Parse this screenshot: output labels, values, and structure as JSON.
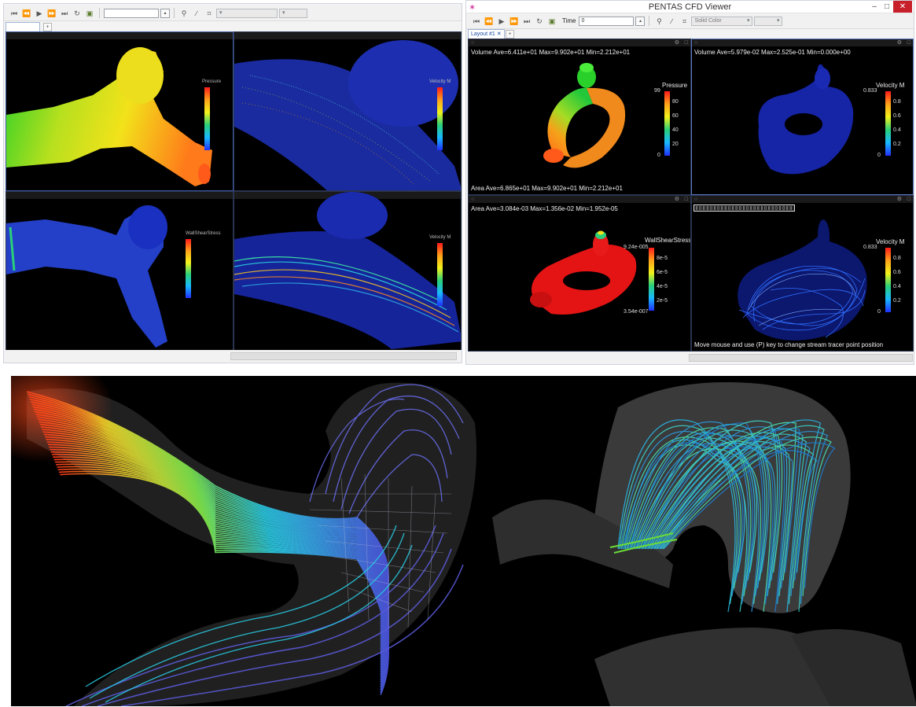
{
  "right_window": {
    "title": "PENTAS CFD Viewer",
    "toolbar": {
      "time_label": "Time",
      "time_value": "0",
      "render_mode": "Solid Color"
    },
    "tab_label": "Layout #1",
    "panes": [
      {
        "info": "Volume Ave=6.411e+01 Max=9.902e+01 Min=2.212e+01",
        "footer": "Area Ave=6.865e+01 Max=9.902e+01 Min=2.212e+01",
        "colorbar": {
          "title": "Pressure",
          "max": "99",
          "ticks": [
            "80",
            "60",
            "40",
            "20"
          ],
          "min": "0"
        }
      },
      {
        "info": "Volume Ave=5.979e-02 Max=2.525e-01 Min=0.000e+00",
        "colorbar": {
          "title": "Velocity M",
          "max": "0.833",
          "ticks": [
            "0.8",
            "0.6",
            "0.4",
            "0.2"
          ],
          "min": "0"
        }
      },
      {
        "info": "Area Ave=3.084e-03 Max=1.356e-02 Min=1.952e-05",
        "colorbar": {
          "title": "WallShearStress",
          "max": "9.24e-005",
          "ticks": [
            "8e-5",
            "6e-5",
            "4e-5",
            "2e-5"
          ],
          "min": "3.54e-007"
        }
      },
      {
        "footer": "Move mouse and use (P) key to change stream tracer point position",
        "colorbar": {
          "title": "Velocity M",
          "max": "0.833",
          "ticks": [
            "0.8",
            "0.6",
            "0.4",
            "0.2"
          ],
          "min": "0"
        }
      }
    ]
  },
  "left_window": {
    "panes": [
      {
        "colorbar": {
          "title": "Pressure"
        }
      },
      {
        "colorbar": {
          "title": "Velocity M"
        }
      },
      {
        "colorbar": {
          "title": "WallShearStress"
        }
      },
      {
        "colorbar": {
          "title": "Velocity M"
        }
      }
    ]
  },
  "colors": {
    "pressure_scale": [
      "#1a2cff",
      "#00c8ff",
      "#22e07a",
      "#f2f21a",
      "#ff8a1a",
      "#ff1a1a"
    ],
    "wall": "#2a3bd6",
    "vessel_red": "#e01212"
  }
}
